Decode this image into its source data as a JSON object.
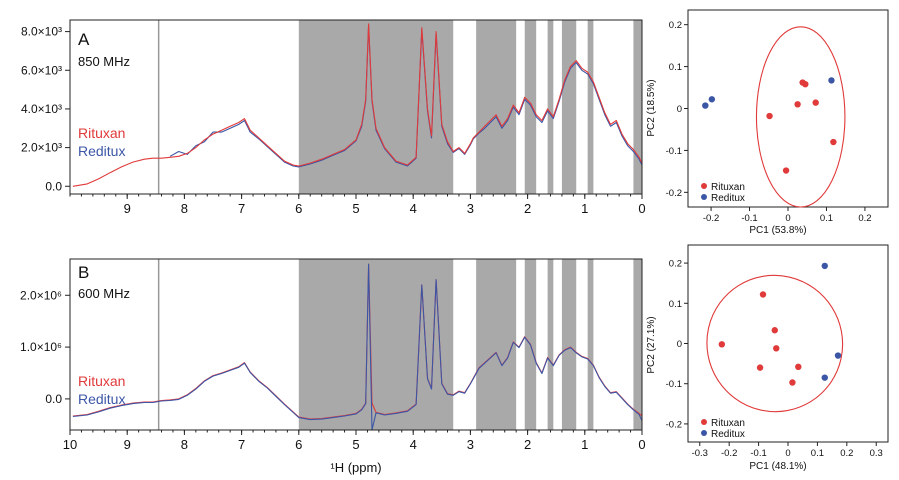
{
  "chart_data": [
    {
      "type": "line",
      "panel_letter": "A",
      "field_label": "850 MHz",
      "y_tick_labels": [
        "8.0×10³",
        "6.0×10³",
        "4.0×10³",
        "2.0×10³",
        "0.0"
      ],
      "y_ticks": [
        8000,
        6000,
        4000,
        2000,
        0
      ],
      "ylim": [
        -400,
        8600
      ],
      "x_ticks": [
        9,
        8,
        7,
        6,
        5,
        4,
        3,
        2,
        1,
        0
      ],
      "xlim": [
        10,
        0
      ],
      "x_reversed": true,
      "xlabel": "",
      "reference_line_ppm": 8.45,
      "excluded_regions_ppm": [
        [
          6.0,
          3.3
        ],
        [
          2.9,
          2.2
        ],
        [
          2.05,
          1.85
        ],
        [
          1.65,
          1.55
        ],
        [
          1.4,
          1.15
        ],
        [
          0.95,
          0.85
        ],
        [
          0.15,
          -0.05
        ]
      ],
      "excluded_color": "#a9a9a9",
      "series": [
        {
          "name": "Rituxan",
          "color": "#e03a3a",
          "x": [
            9.95,
            9.7,
            9.5,
            9.3,
            9.1,
            8.9,
            8.7,
            8.55,
            8.4,
            8.25,
            8.1,
            7.95,
            7.8,
            7.65,
            7.5,
            7.35,
            7.2,
            7.05,
            6.95,
            6.85,
            6.7,
            6.55,
            6.4,
            6.25,
            6.1,
            6.0,
            5.8,
            5.6,
            5.4,
            5.2,
            5.0,
            4.9,
            4.83,
            4.78,
            4.72,
            4.65,
            4.5,
            4.3,
            4.1,
            3.95,
            3.85,
            3.75,
            3.68,
            3.6,
            3.5,
            3.4,
            3.3,
            3.2,
            3.1,
            3.0,
            2.95,
            2.85,
            2.75,
            2.65,
            2.55,
            2.45,
            2.35,
            2.25,
            2.15,
            2.05,
            1.95,
            1.85,
            1.75,
            1.65,
            1.55,
            1.45,
            1.35,
            1.25,
            1.15,
            1.05,
            0.95,
            0.85,
            0.75,
            0.65,
            0.55,
            0.45,
            0.35,
            0.25,
            0.15,
            0.05,
            0.0
          ],
          "y": [
            0,
            120,
            380,
            700,
            1000,
            1250,
            1400,
            1450,
            1450,
            1500,
            1550,
            1700,
            2000,
            2400,
            2700,
            2900,
            3100,
            3300,
            3500,
            2900,
            2500,
            2100,
            1700,
            1300,
            1100,
            1050,
            1200,
            1400,
            1650,
            1900,
            2400,
            3200,
            4500,
            8400,
            4500,
            3000,
            2000,
            1300,
            1100,
            1500,
            8200,
            4000,
            2600,
            8000,
            3200,
            2300,
            1800,
            2000,
            1700,
            2200,
            2500,
            2800,
            3100,
            3400,
            3700,
            3100,
            3500,
            4200,
            3800,
            4600,
            4300,
            3700,
            3400,
            4000,
            3600,
            4500,
            5500,
            6200,
            6500,
            6100,
            5900,
            5400,
            4600,
            3800,
            3200,
            3400,
            2700,
            2200,
            1900,
            1500,
            1200
          ]
        },
        {
          "name": "Reditux",
          "color": "#3c56a6",
          "x": [
            8.25,
            8.1,
            7.95,
            7.8,
            7.65,
            7.5,
            7.35,
            7.2,
            7.05,
            6.95,
            6.85,
            6.7,
            6.55,
            6.4,
            6.25,
            6.1,
            6.0,
            5.8,
            5.6,
            5.4,
            5.2,
            5.0,
            4.9,
            4.83,
            4.78,
            4.72,
            4.65,
            4.5,
            4.3,
            4.1,
            3.95,
            3.85,
            3.75,
            3.68,
            3.6,
            3.5,
            3.4,
            3.3,
            3.2,
            3.1,
            3.0,
            2.95,
            2.85,
            2.75,
            2.65,
            2.55,
            2.45,
            2.35,
            2.25,
            2.15,
            2.05,
            1.95,
            1.85,
            1.75,
            1.65,
            1.55,
            1.45,
            1.35,
            1.25,
            1.15,
            1.05,
            0.95,
            0.85,
            0.75,
            0.65,
            0.55,
            0.45,
            0.35,
            0.25,
            0.15,
            0.05,
            0.0
          ],
          "y": [
            1550,
            1800,
            1650,
            2100,
            2300,
            2800,
            2800,
            3000,
            3200,
            3400,
            2800,
            2450,
            2050,
            1650,
            1250,
            1050,
            1000,
            1150,
            1350,
            1600,
            1850,
            2350,
            3100,
            4400,
            8300,
            4400,
            2900,
            1950,
            1250,
            1050,
            1450,
            8100,
            3900,
            2500,
            7900,
            3100,
            2200,
            1750,
            1950,
            1650,
            2150,
            2450,
            2750,
            3000,
            3300,
            3600,
            3000,
            3400,
            4100,
            3700,
            4500,
            4200,
            3600,
            3300,
            3900,
            3500,
            4400,
            5400,
            6100,
            6400,
            6000,
            5800,
            5300,
            4500,
            3700,
            3100,
            3300,
            2600,
            2100,
            1800,
            1400,
            1100
          ]
        }
      ]
    },
    {
      "type": "line",
      "panel_letter": "B",
      "field_label": "600 MHz",
      "y_tick_labels": [
        "2.0×10⁶",
        "1.0×10⁶",
        "0.0"
      ],
      "y_ticks": [
        2000000,
        1000000,
        0
      ],
      "ylim": [
        -600000,
        2700000
      ],
      "x_ticks": [
        10,
        9,
        8,
        7,
        6,
        5,
        4,
        3,
        2,
        1,
        0
      ],
      "xlim": [
        10,
        0
      ],
      "x_reversed": true,
      "xlabel": "¹H (ppm)",
      "reference_line_ppm": 8.45,
      "excluded_regions_ppm": [
        [
          6.0,
          3.3
        ],
        [
          2.9,
          2.2
        ],
        [
          2.05,
          1.85
        ],
        [
          1.65,
          1.55
        ],
        [
          1.4,
          1.15
        ],
        [
          0.95,
          0.85
        ],
        [
          0.15,
          -0.05
        ]
      ],
      "excluded_color": "#a9a9a9",
      "series": [
        {
          "name": "Rituxan",
          "color": "#e03a3a",
          "x": [
            9.95,
            9.7,
            9.5,
            9.3,
            9.1,
            8.9,
            8.7,
            8.55,
            8.4,
            8.25,
            8.1,
            7.95,
            7.8,
            7.65,
            7.5,
            7.35,
            7.2,
            7.05,
            6.95,
            6.85,
            6.7,
            6.55,
            6.4,
            6.25,
            6.1,
            6.0,
            5.8,
            5.6,
            5.4,
            5.2,
            5.0,
            4.9,
            4.83,
            4.78,
            4.72,
            4.65,
            4.5,
            4.3,
            4.1,
            3.95,
            3.85,
            3.75,
            3.68,
            3.6,
            3.5,
            3.4,
            3.3,
            3.2,
            3.1,
            3.0,
            2.95,
            2.85,
            2.75,
            2.65,
            2.55,
            2.45,
            2.35,
            2.25,
            2.15,
            2.05,
            1.95,
            1.85,
            1.75,
            1.65,
            1.55,
            1.45,
            1.35,
            1.25,
            1.15,
            1.05,
            0.95,
            0.85,
            0.75,
            0.65,
            0.55,
            0.45,
            0.35,
            0.25,
            0.15,
            0.05,
            0.0
          ],
          "y": [
            -330000,
            -300000,
            -240000,
            -170000,
            -120000,
            -80000,
            -60000,
            -60000,
            -30000,
            -20000,
            0,
            80000,
            200000,
            350000,
            450000,
            500000,
            560000,
            620000,
            700000,
            520000,
            350000,
            220000,
            60000,
            -100000,
            -250000,
            -350000,
            -390000,
            -380000,
            -350000,
            -320000,
            -280000,
            -200000,
            -80000,
            2600000,
            -80000,
            -260000,
            -300000,
            -270000,
            -230000,
            -100000,
            2200000,
            400000,
            200000,
            2300000,
            300000,
            100000,
            80000,
            150000,
            120000,
            300000,
            400000,
            600000,
            700000,
            800000,
            900000,
            650000,
            800000,
            1100000,
            1000000,
            1200000,
            1050000,
            700000,
            500000,
            800000,
            650000,
            850000,
            950000,
            1000000,
            900000,
            820000,
            780000,
            650000,
            420000,
            250000,
            120000,
            140000,
            20000,
            -100000,
            -200000,
            -280000,
            -330000
          ]
        },
        {
          "name": "Reditux",
          "color": "#3c56a6",
          "x": [
            9.95,
            9.7,
            9.5,
            9.3,
            9.1,
            8.9,
            8.7,
            8.55,
            8.4,
            8.25,
            8.1,
            7.95,
            7.8,
            7.65,
            7.5,
            7.35,
            7.2,
            7.05,
            6.95,
            6.85,
            6.7,
            6.55,
            6.4,
            6.25,
            6.1,
            6.0,
            5.8,
            5.6,
            5.4,
            5.2,
            5.0,
            4.9,
            4.83,
            4.78,
            4.72,
            4.65,
            4.5,
            4.3,
            4.1,
            3.95,
            3.85,
            3.75,
            3.68,
            3.6,
            3.5,
            3.4,
            3.3,
            3.2,
            3.1,
            3.0,
            2.95,
            2.85,
            2.75,
            2.65,
            2.55,
            2.45,
            2.35,
            2.25,
            2.15,
            2.05,
            1.95,
            1.85,
            1.75,
            1.65,
            1.55,
            1.45,
            1.35,
            1.25,
            1.15,
            1.05,
            0.95,
            0.85,
            0.75,
            0.65,
            0.55,
            0.45,
            0.35,
            0.25,
            0.15,
            0.05,
            0.0
          ],
          "y": [
            -340000,
            -310000,
            -250000,
            -180000,
            -130000,
            -90000,
            -70000,
            -70000,
            -40000,
            -30000,
            -10000,
            70000,
            190000,
            340000,
            440000,
            490000,
            550000,
            610000,
            690000,
            510000,
            340000,
            210000,
            50000,
            -110000,
            -260000,
            -360000,
            -400000,
            -390000,
            -360000,
            -330000,
            -290000,
            -210000,
            -90000,
            2600000,
            -600000,
            -270000,
            -310000,
            -280000,
            -240000,
            -110000,
            2200000,
            390000,
            190000,
            2300000,
            290000,
            90000,
            70000,
            140000,
            110000,
            290000,
            390000,
            590000,
            690000,
            790000,
            890000,
            640000,
            790000,
            1090000,
            990000,
            1190000,
            1040000,
            690000,
            490000,
            790000,
            640000,
            840000,
            940000,
            990000,
            890000,
            810000,
            770000,
            640000,
            410000,
            240000,
            110000,
            130000,
            10000,
            -110000,
            -210000,
            -300000,
            -420000
          ]
        }
      ]
    },
    {
      "type": "scatter",
      "panel_letter": "",
      "xlabel": "PC1 (53.8%)",
      "ylabel": "PC2 (18.5%)",
      "xlim": [
        -0.26,
        0.26
      ],
      "ylim": [
        -0.235,
        0.235
      ],
      "x_ticks": [
        -0.2,
        -0.1,
        0.0,
        0.1,
        0.2
      ],
      "x_tick_labels": [
        "-0.2",
        "-0.1",
        "0",
        "0.1",
        "0.2"
      ],
      "y_ticks": [
        0.2,
        0.1,
        0.0,
        -0.1,
        -0.2
      ],
      "y_tick_labels": [
        "0.2",
        "0.1",
        "0",
        "-0.1",
        "-0.2"
      ],
      "ellipse": {
        "cx": 0.033,
        "cy": -0.02,
        "rx": 0.115,
        "ry": 0.215,
        "rotation_deg": 0,
        "color": "#e03a3a"
      },
      "series": [
        {
          "name": "Rituxan",
          "color": "#e03a3a",
          "x": [
            0.038,
            0.045,
            -0.048,
            0.025,
            0.072,
            0.118,
            -0.005
          ],
          "y": [
            0.062,
            0.058,
            -0.018,
            0.01,
            0.014,
            -0.08,
            -0.148
          ]
        },
        {
          "name": "Reditux",
          "color": "#3c56a6",
          "x": [
            -0.215,
            -0.198,
            0.113
          ],
          "y": [
            0.007,
            0.022,
            0.067
          ]
        }
      ]
    },
    {
      "type": "scatter",
      "panel_letter": "",
      "xlabel": "PC1 (48.1%)",
      "ylabel": "PC2 (27.1%)",
      "xlim": [
        -0.34,
        0.34
      ],
      "ylim": [
        -0.245,
        0.245
      ],
      "x_ticks": [
        -0.3,
        -0.2,
        -0.1,
        0.0,
        0.1,
        0.2,
        0.3
      ],
      "x_tick_labels": [
        "-0.3",
        "-0.2",
        "-0.1",
        "0",
        "0.1",
        "0.2",
        "0.3"
      ],
      "y_ticks": [
        0.2,
        0.1,
        0.0,
        -0.1,
        -0.2
      ],
      "y_tick_labels": [
        "0.2",
        "0.1",
        "0",
        "-0.1",
        "-0.2"
      ],
      "ellipse": {
        "cx": -0.045,
        "cy": 0.0,
        "rx": 0.23,
        "ry": 0.17,
        "rotation_deg": -32,
        "color": "#e03a3a"
      },
      "series": [
        {
          "name": "Rituxan",
          "color": "#e03a3a",
          "x": [
            -0.085,
            -0.045,
            -0.04,
            -0.225,
            -0.095,
            0.035,
            0.015
          ],
          "y": [
            0.122,
            0.033,
            -0.012,
            -0.002,
            -0.06,
            -0.058,
            -0.097
          ]
        },
        {
          "name": "Reditux",
          "color": "#3c56a6",
          "x": [
            0.125,
            0.17,
            0.125
          ],
          "y": [
            0.193,
            -0.03,
            -0.085
          ]
        }
      ]
    }
  ]
}
